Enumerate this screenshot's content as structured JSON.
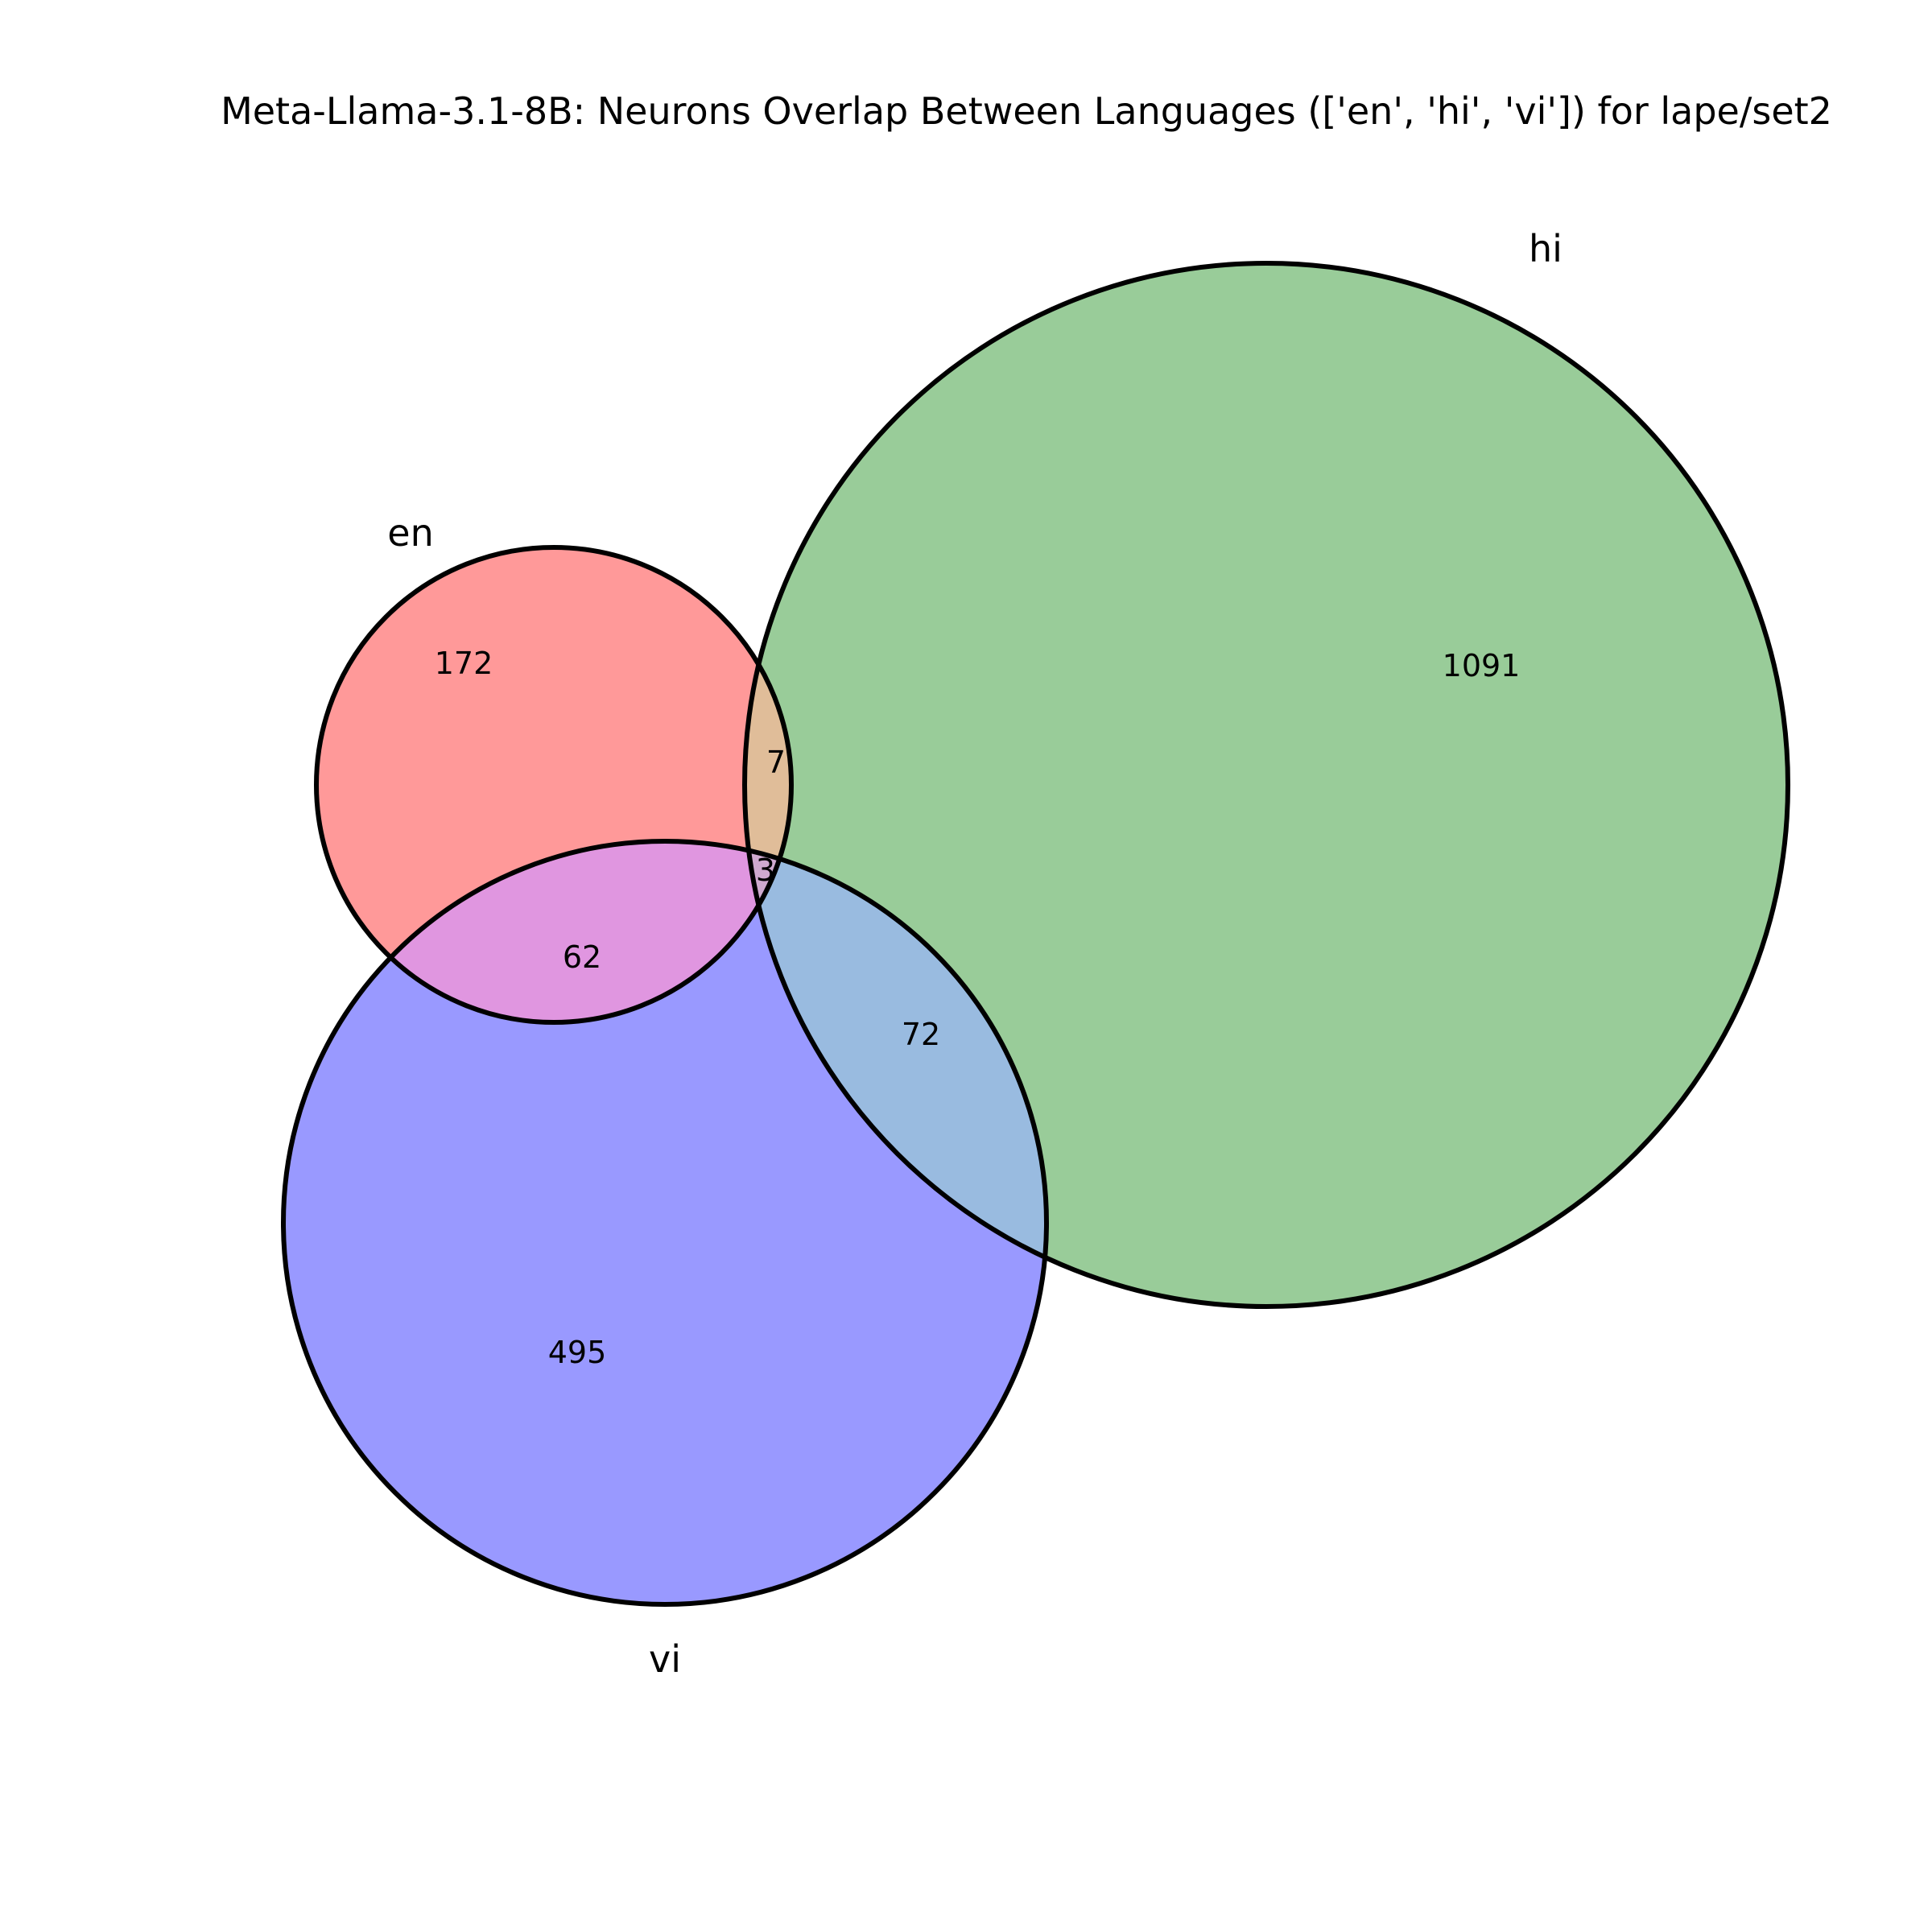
{
  "title": "Meta-Llama-3.1-8B: Neurons Overlap Between Languages (['en', 'hi', 'vi']) for lape/set2",
  "colors": {
    "en": "#ff9999",
    "hi": "#99cc99",
    "vi": "#9999ff",
    "en_hi": "#e0bd99",
    "en_vi": "#e096e0",
    "hi_vi": "#99bbe0",
    "outline": "#000000"
  },
  "sets": {
    "en": {
      "label": "en"
    },
    "hi": {
      "label": "hi"
    },
    "vi": {
      "label": "vi"
    }
  },
  "regions": {
    "en_only": "172",
    "hi_only": "1091",
    "vi_only": "495",
    "en_hi": "7",
    "en_vi": "62",
    "hi_vi": "72",
    "en_hi_vi": "3"
  }
}
